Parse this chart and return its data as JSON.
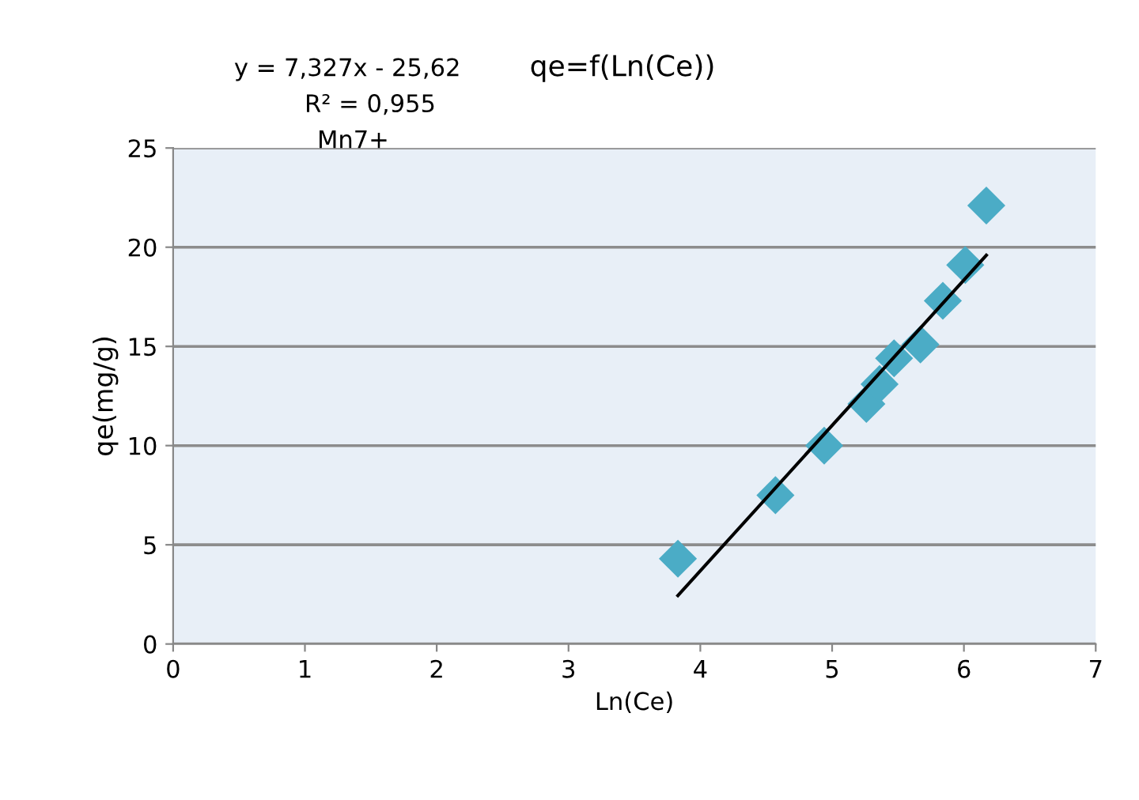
{
  "chart_data": {
    "type": "scatter",
    "title": "qe=f(Ln(Ce))",
    "xlabel": "Ln(Ce)",
    "ylabel": "qe(mg/g)",
    "annotations": [
      "y = 7,327x - 25,62",
      "R² = 0,955",
      "Mn7+"
    ],
    "series": [
      {
        "color": "#4bacc6",
        "marker": "diamond",
        "x": [
          3.83,
          4.57,
          4.94,
          5.26,
          5.36,
          5.47,
          5.67,
          5.84,
          6.01,
          6.17
        ],
        "values": [
          4.3,
          7.5,
          10.0,
          12.1,
          13.1,
          14.4,
          15.1,
          17.3,
          19.1,
          22.1
        ]
      },
      {
        "type": "line",
        "color": "#000000",
        "marker": "none",
        "line_style": "solid",
        "x": [
          3.83,
          6.17
        ],
        "values": [
          2.44,
          19.59
        ]
      }
    ],
    "xlim": [
      0,
      7
    ],
    "xticks": [
      0,
      1,
      2,
      3,
      4,
      5,
      6,
      7
    ],
    "ylim": [
      0,
      25
    ],
    "yticks": [
      0,
      5,
      10,
      15,
      20,
      25
    ],
    "grid": "y",
    "legend": false
  }
}
